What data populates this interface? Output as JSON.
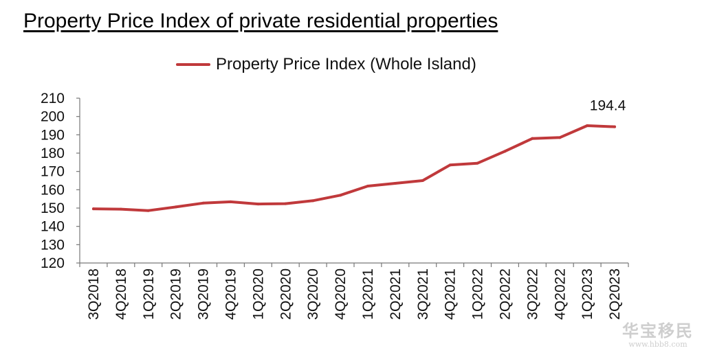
{
  "title": "Property Price Index of private residential properties",
  "chart_data": {
    "type": "line",
    "categories": [
      "3Q2018",
      "4Q2018",
      "1Q2019",
      "2Q2019",
      "3Q2019",
      "4Q2019",
      "1Q2020",
      "2Q2020",
      "3Q2020",
      "4Q2020",
      "1Q2021",
      "2Q2021",
      "3Q2021",
      "4Q2021",
      "1Q2022",
      "2Q2022",
      "3Q2022",
      "4Q2022",
      "1Q2023",
      "2Q2023"
    ],
    "series": [
      {
        "name": "Property Price Index (Whole Island)",
        "color": "#c0393b",
        "values": [
          149.6,
          149.4,
          148.6,
          150.6,
          152.7,
          153.4,
          152.2,
          152.4,
          154.0,
          157.0,
          162.0,
          163.5,
          165.0,
          173.5,
          174.5,
          181.0,
          188.0,
          188.5,
          195.0,
          194.4
        ]
      }
    ],
    "ylim": [
      120,
      210
    ],
    "yticks": [
      120,
      130,
      140,
      150,
      160,
      170,
      180,
      190,
      200,
      210
    ],
    "annotation": "194.4",
    "grid": false,
    "legend_position": "top-center"
  },
  "watermark": {
    "main": "华宝移民",
    "sub": "www.hbb8.com"
  }
}
